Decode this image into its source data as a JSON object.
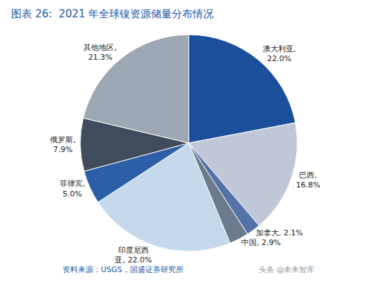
{
  "chart_data": {
    "type": "pie",
    "title": "图表 26:  2021 年全球镍资源储量分布情况",
    "values": [
      22.0,
      16.8,
      2.1,
      2.9,
      22.0,
      5.0,
      7.9,
      21.3
    ],
    "value_labels": [
      "澳大利亚,\n22.0%",
      "巴西,\n16.8%",
      "加拿大, 2.1%",
      "中国, 2.9%",
      "印度尼西\n亚, 22.0%",
      "菲律宾,\n5.0%",
      "俄罗斯,\n7.9%",
      "其他地区,\n21.3%"
    ],
    "colors": [
      "#1B4F9B",
      "#C0C8D8",
      "#5472A8",
      "#6B7B8D",
      "#C5D8EC",
      "#2D5FA8",
      "#404C5C",
      "#9EA8B4"
    ],
    "annotations": [
      "资料来源：USGS，国盛证券研究所",
      "头条 @未来智库"
    ]
  }
}
